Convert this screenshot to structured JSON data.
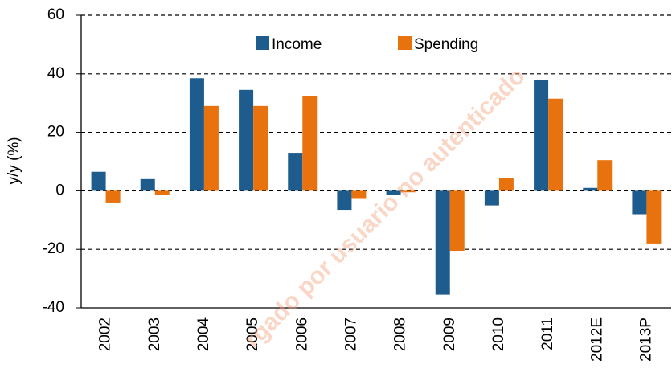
{
  "chart_data": {
    "type": "bar",
    "ylabel": "y/y (%)",
    "categories": [
      "2002",
      "2003",
      "2004",
      "2005",
      "2006",
      "2007",
      "2008",
      "2009",
      "2010",
      "2011",
      "2012E",
      "2013P"
    ],
    "series": [
      {
        "name": "Income",
        "color": "#1f5c8e",
        "values": [
          6.5,
          4,
          38.5,
          34.5,
          13,
          -6.5,
          -1.5,
          -35.5,
          -5,
          38,
          1,
          -8
        ]
      },
      {
        "name": "Spending",
        "color": "#e8730e",
        "values": [
          -4,
          -1.5,
          29,
          29,
          32.5,
          -2.5,
          -0.5,
          -20.5,
          4.5,
          31.5,
          10.5,
          -18
        ]
      }
    ],
    "ylim": [
      -40,
      60
    ],
    "yticks": [
      -40,
      -20,
      0,
      20,
      40,
      60
    ],
    "grid": true,
    "legend": "top",
    "watermark": "rgado por usuario no autenticado"
  }
}
